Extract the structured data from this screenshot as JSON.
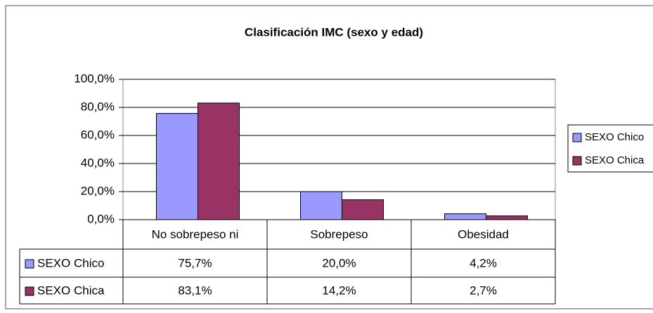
{
  "chart_data": {
    "type": "bar",
    "title": "Clasificación IMC (sexo y edad)",
    "categories": [
      "No sobrepeso ni",
      "Sobrepeso",
      "Obesidad"
    ],
    "series": [
      {
        "name": "SEXO Chico",
        "color": "#9999ff",
        "values": [
          75.7,
          20.0,
          4.2
        ],
        "value_labels": [
          "75,7%",
          "20,0%",
          "4,2%"
        ]
      },
      {
        "name": "SEXO Chica",
        "color": "#993366",
        "values": [
          83.1,
          14.2,
          2.7
        ],
        "value_labels": [
          "83,1%",
          "14,2%",
          "2,7%"
        ]
      }
    ],
    "ylim": [
      0,
      100
    ],
    "yticks": [
      {
        "value": 0,
        "label": "0,0%"
      },
      {
        "value": 20,
        "label": "20,0%"
      },
      {
        "value": 40,
        "label": "40,0%"
      },
      {
        "value": 60,
        "label": "60,0%"
      },
      {
        "value": 80,
        "label": "80,0%"
      },
      {
        "value": 100,
        "label": "100,0%"
      }
    ],
    "grid": true,
    "legend": "right",
    "data_table": true
  }
}
